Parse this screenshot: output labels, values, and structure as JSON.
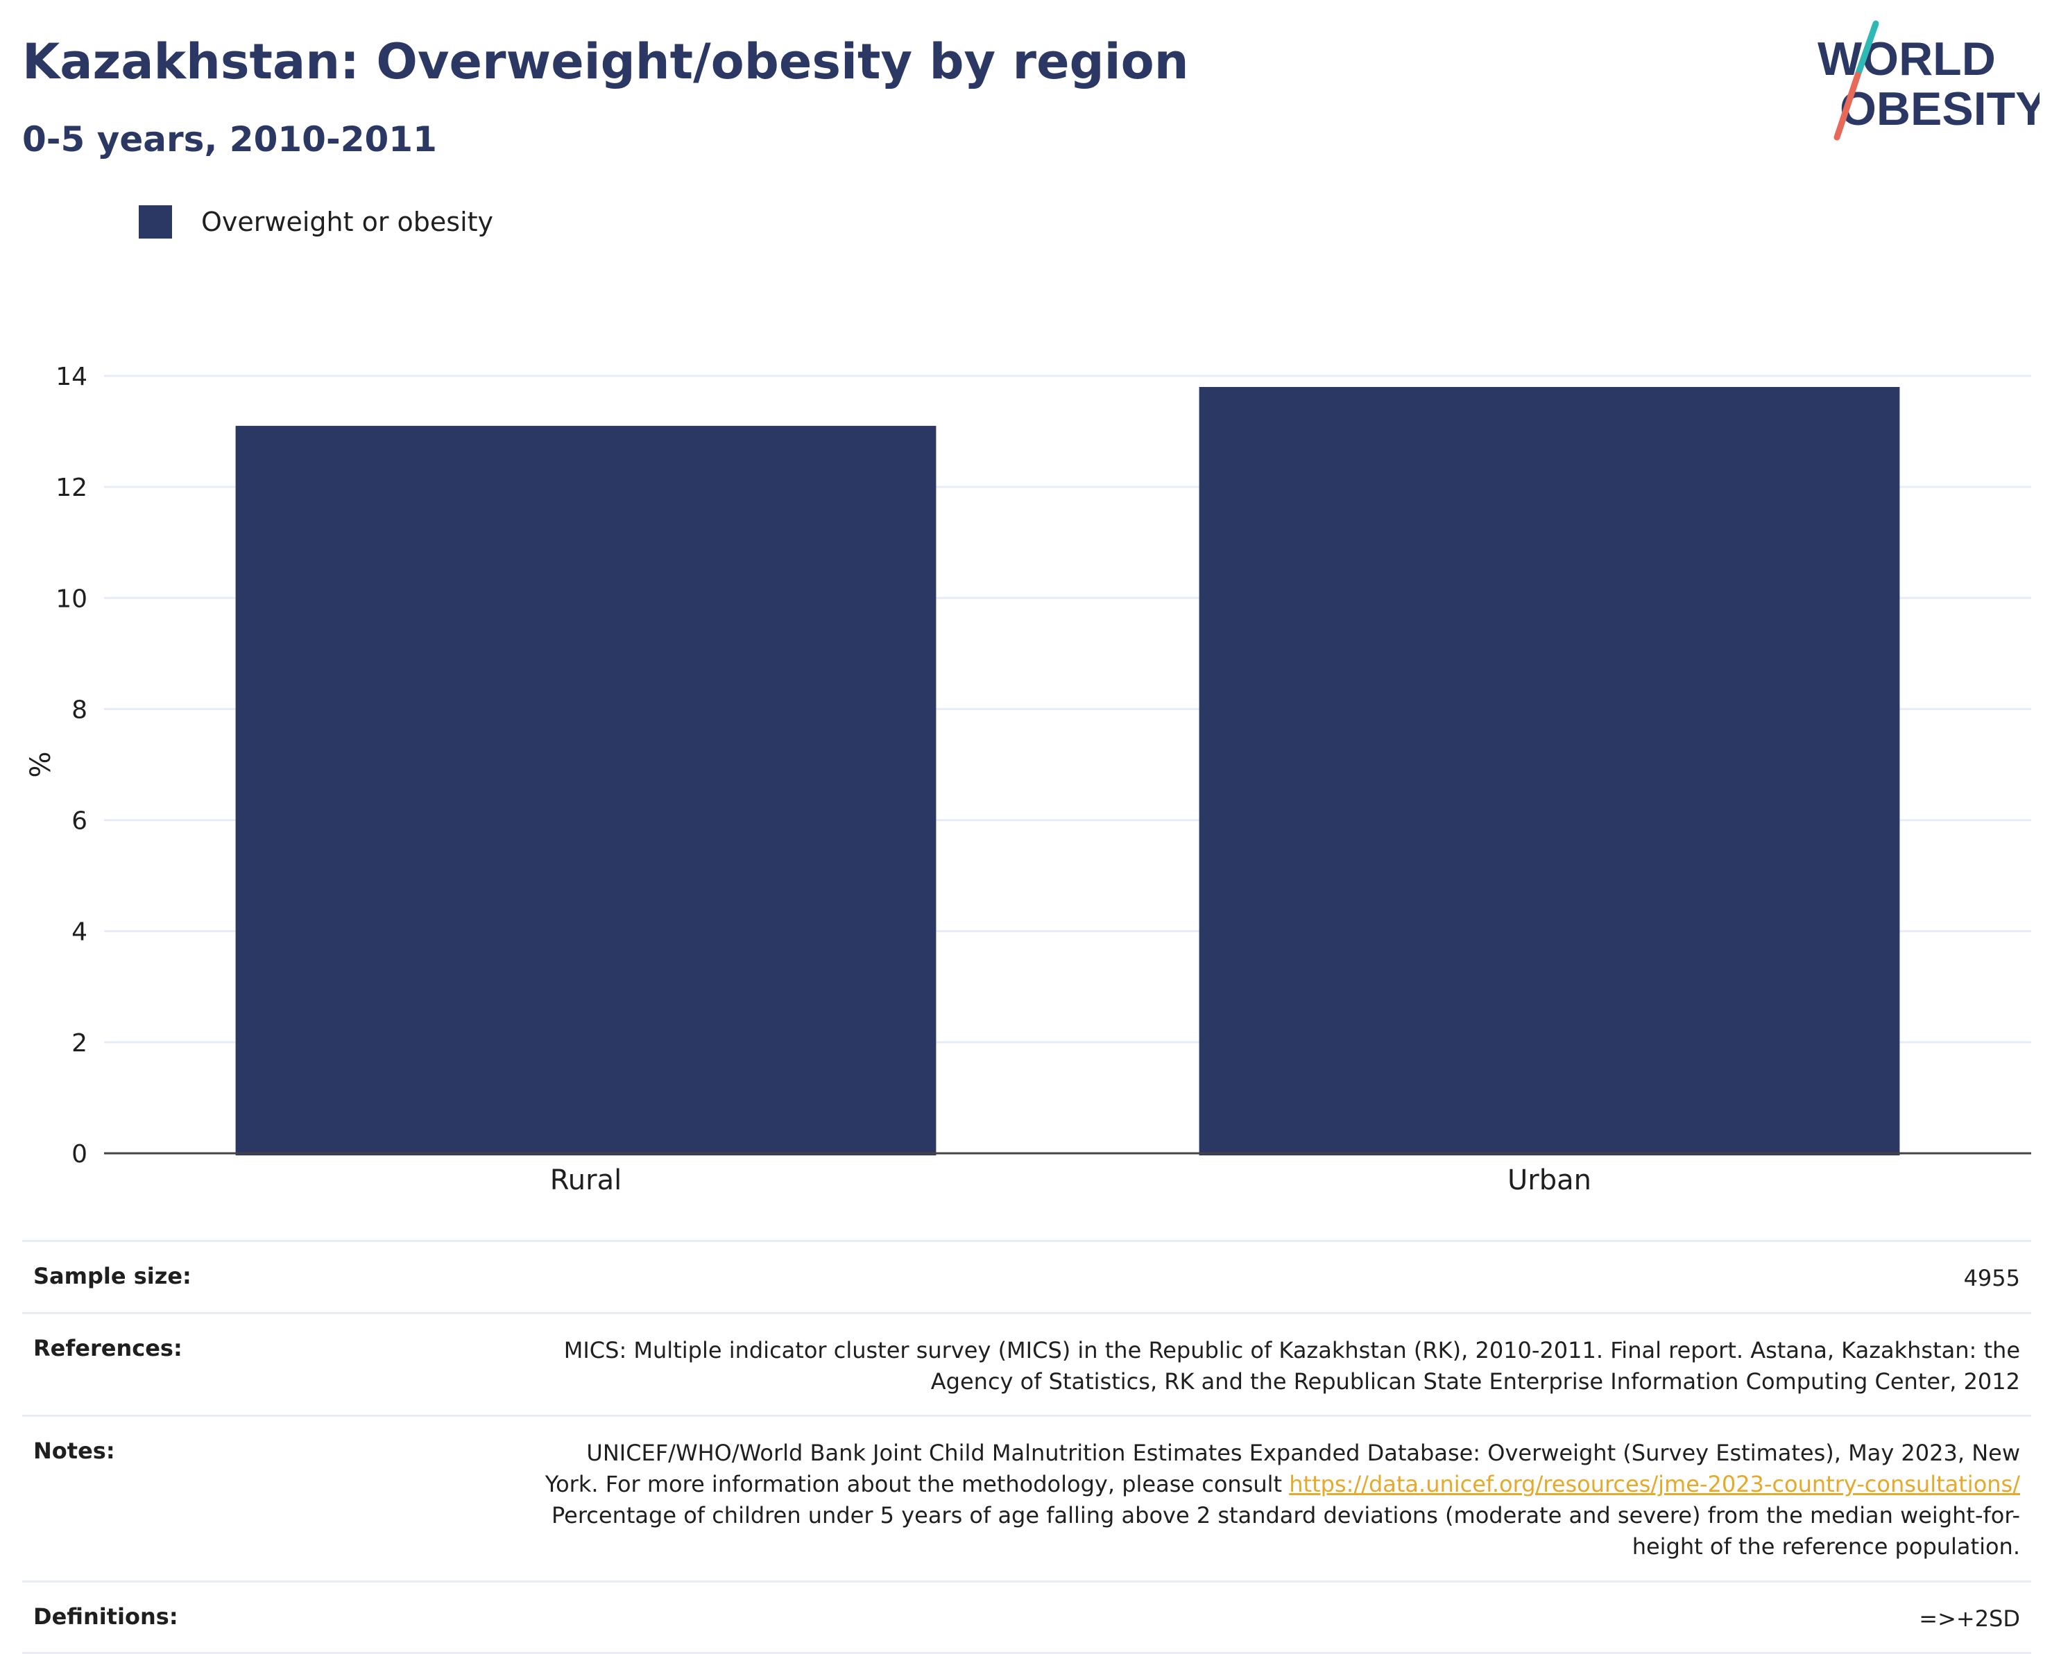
{
  "header": {
    "title": "Kazakhstan: Overweight/obesity by region",
    "subtitle": "0-5 years, 2010-2011"
  },
  "logo": {
    "line1": "WORLD",
    "line2": "OBESITY",
    "accent_teal": "#2fb9b5",
    "accent_coral": "#e8695a"
  },
  "colors": {
    "bar": "#2b3863",
    "text_dark": "#2b3863",
    "grid": "#e8ecf3",
    "axis": "#444444"
  },
  "chart_data": {
    "type": "bar",
    "categories": [
      "Rural",
      "Urban"
    ],
    "series": [
      {
        "name": "Overweight or obesity",
        "values": [
          13.1,
          13.8
        ]
      }
    ],
    "ylabel": "%",
    "ylim": [
      0,
      14
    ],
    "yticks": [
      0,
      2,
      4,
      6,
      8,
      10,
      12,
      14
    ],
    "grid": true,
    "legend_position": "top-left"
  },
  "info": {
    "sample_size_label": "Sample size:",
    "sample_size_value": "4955",
    "references_label": "References:",
    "references_value": "MICS: Multiple indicator cluster survey (MICS) in the Republic of Kazakhstan (RK), 2010-2011. Final report. Astana, Kazakhstan: the Agency of Statistics, RK and the Republican State Enterprise Information Computing Center, 2012",
    "notes_label": "Notes:",
    "notes_text_before": "UNICEF/WHO/World Bank Joint Child Malnutrition Estimates Expanded Database: Overweight (Survey Estimates), May 2023, New York. For more information about the methodology, please consult ",
    "notes_link": "https://data.unicef.org/resources/jme-2023-country-consultations/",
    "notes_text_after": " Percentage of children under 5 years of age falling above 2 standard deviations (moderate and severe) from the median weight-for-height of the reference population.",
    "definitions_label": "Definitions:",
    "definitions_value": "=>+2SD"
  }
}
